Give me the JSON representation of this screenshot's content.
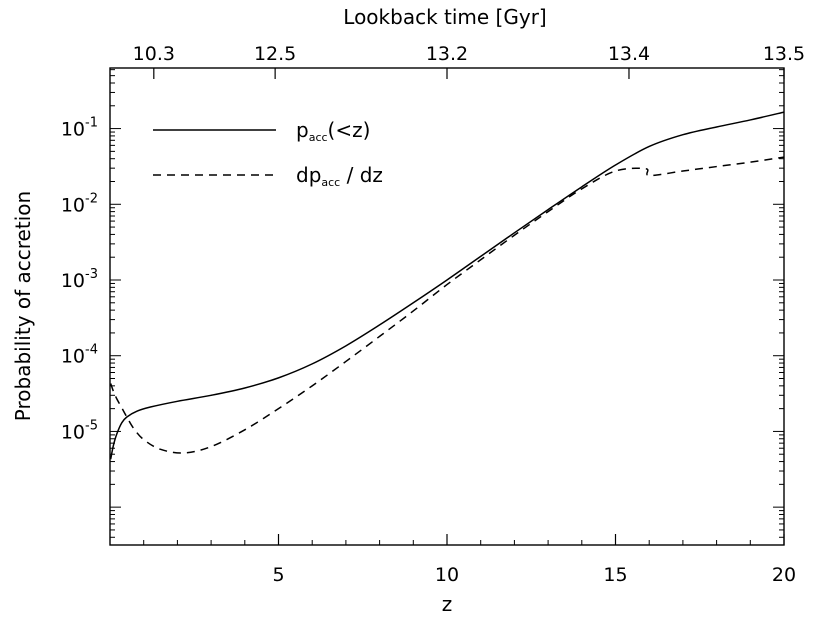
{
  "chart_data": {
    "type": "line",
    "xlabel": "z",
    "ylabel": "Probability of accretion",
    "top_xlabel": "Lookback time [Gyr]",
    "xlim": [
      0,
      20
    ],
    "ylim_log10": [
      -6.5,
      -0.2
    ],
    "yscale": "log",
    "x_ticks": [
      {
        "value": 5,
        "label": "5"
      },
      {
        "value": 10,
        "label": "10"
      },
      {
        "value": 15,
        "label": "15"
      },
      {
        "value": 20,
        "label": "20"
      }
    ],
    "top_ticks": [
      {
        "z": 1.3,
        "label": "10.3"
      },
      {
        "z": 4.9,
        "label": "12.5"
      },
      {
        "z": 10.0,
        "label": "13.2"
      },
      {
        "z": 15.4,
        "label": "13.4"
      },
      {
        "z": 20.0,
        "label": "13.5"
      }
    ],
    "y_ticks": [
      {
        "exp": -5,
        "label": "-5"
      },
      {
        "exp": -4,
        "label": "-4"
      },
      {
        "exp": -3,
        "label": "-3"
      },
      {
        "exp": -2,
        "label": "-2"
      },
      {
        "exp": -1,
        "label": "-1"
      }
    ],
    "legend_position": "top-left",
    "series": [
      {
        "name": "p_acc(<z)",
        "name_parts": {
          "pre": "p",
          "sub": "acc",
          "post": "(<z)"
        },
        "style": "solid",
        "x": [
          0.02,
          0.1,
          0.2,
          0.35,
          0.5,
          0.8,
          1.2,
          2,
          3,
          4,
          5,
          6,
          7,
          8,
          9,
          10,
          11,
          12,
          13,
          14,
          15,
          16,
          17,
          18,
          19,
          20
        ],
        "y": [
          4.3e-06,
          6.5e-06,
          9.2e-06,
          1.3e-05,
          1.55e-05,
          1.85e-05,
          2.1e-05,
          2.5e-05,
          3e-05,
          3.75e-05,
          5.1e-05,
          7.8e-05,
          0.000135,
          0.000255,
          0.0005,
          0.001,
          0.00205,
          0.0042,
          0.0085,
          0.017,
          0.033,
          0.058,
          0.083,
          0.105,
          0.13,
          0.165
        ]
      },
      {
        "name": "dp_acc / dz",
        "name_parts": {
          "pre": "dp",
          "sub": "acc",
          "post": " / dz"
        },
        "style": "dashed",
        "x": [
          0.02,
          0.1,
          0.2,
          0.35,
          0.5,
          0.7,
          1.0,
          1.5,
          2.2,
          3,
          4,
          5,
          6,
          7,
          8,
          9,
          10,
          11,
          12,
          13,
          14,
          15,
          15.9,
          16,
          17,
          18,
          19,
          20
        ],
        "y": [
          4.3e-05,
          3.4e-05,
          2.7e-05,
          2.05e-05,
          1.55e-05,
          1.1e-05,
          7.8e-06,
          5.8e-06,
          5.2e-06,
          6.3e-06,
          1.05e-05,
          2e-05,
          4e-05,
          8.4e-05,
          0.00018,
          0.00039,
          0.00087,
          0.00185,
          0.0039,
          0.008,
          0.016,
          0.0275,
          0.0295,
          0.024,
          0.0275,
          0.0315,
          0.036,
          0.042
        ]
      }
    ]
  }
}
